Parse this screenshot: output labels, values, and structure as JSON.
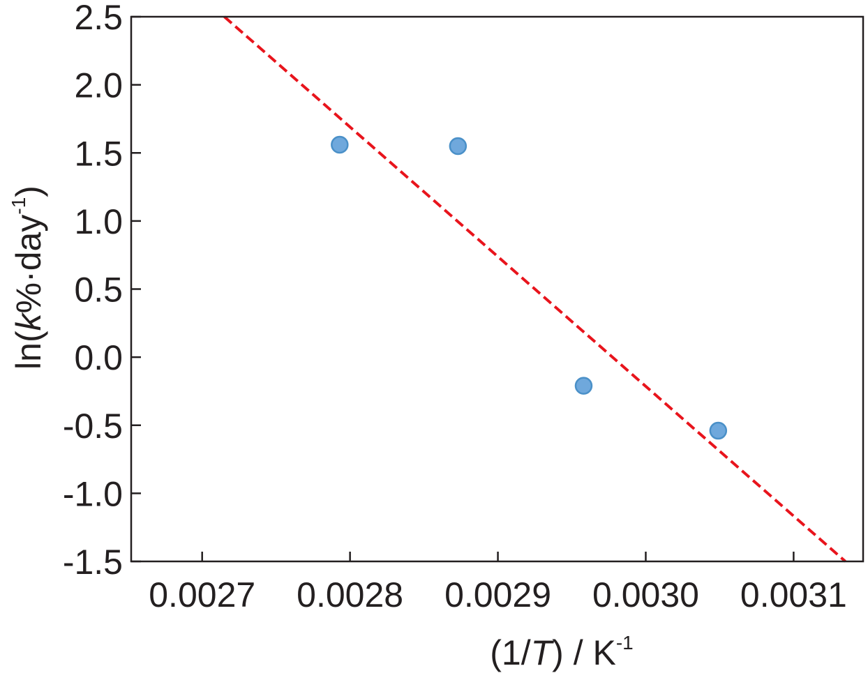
{
  "chart_data": {
    "type": "scatter",
    "xlabel": {
      "prefix": "(1/",
      "italic": "T",
      "suffix": ") / K",
      "sup": "-1"
    },
    "ylabel": {
      "prefix": "ln(",
      "italic": "k",
      "middle": "%·day",
      "sup": "-1",
      "suffix": ")"
    },
    "xlim": [
      0.002652,
      0.003147
    ],
    "ylim": [
      -1.5,
      2.5
    ],
    "xticks": [
      {
        "value": 0.0027,
        "label": "0.0027"
      },
      {
        "value": 0.0028,
        "label": "0.0028"
      },
      {
        "value": 0.0029,
        "label": "0.0029"
      },
      {
        "value": 0.003,
        "label": "0.0030"
      },
      {
        "value": 0.0031,
        "label": "0.0031"
      }
    ],
    "yticks": [
      {
        "value": 2.5,
        "label": "2.5"
      },
      {
        "value": 2.0,
        "label": "2.0"
      },
      {
        "value": 1.5,
        "label": "1.5"
      },
      {
        "value": 1.0,
        "label": "1.0"
      },
      {
        "value": 0.5,
        "label": "0.5"
      },
      {
        "value": 0.0,
        "label": "0.0"
      },
      {
        "value": -0.5,
        "label": "-0.5"
      },
      {
        "value": -1.0,
        "label": "-1.0"
      },
      {
        "value": -1.5,
        "label": "-1.5"
      }
    ],
    "series": [
      {
        "kind": "points",
        "color": "#6fa8dc",
        "edge_color": "#4a90c8",
        "x": [
          0.002793,
          0.002873,
          0.002958,
          0.003049
        ],
        "y": [
          1.56,
          1.55,
          -0.21,
          -0.54
        ]
      },
      {
        "kind": "fit-line",
        "color": "#e8141c",
        "style": "dashed",
        "x": [
          0.002715,
          0.003135
        ],
        "y": [
          2.5,
          -1.5
        ]
      }
    ],
    "grid": false,
    "legend": "none"
  }
}
